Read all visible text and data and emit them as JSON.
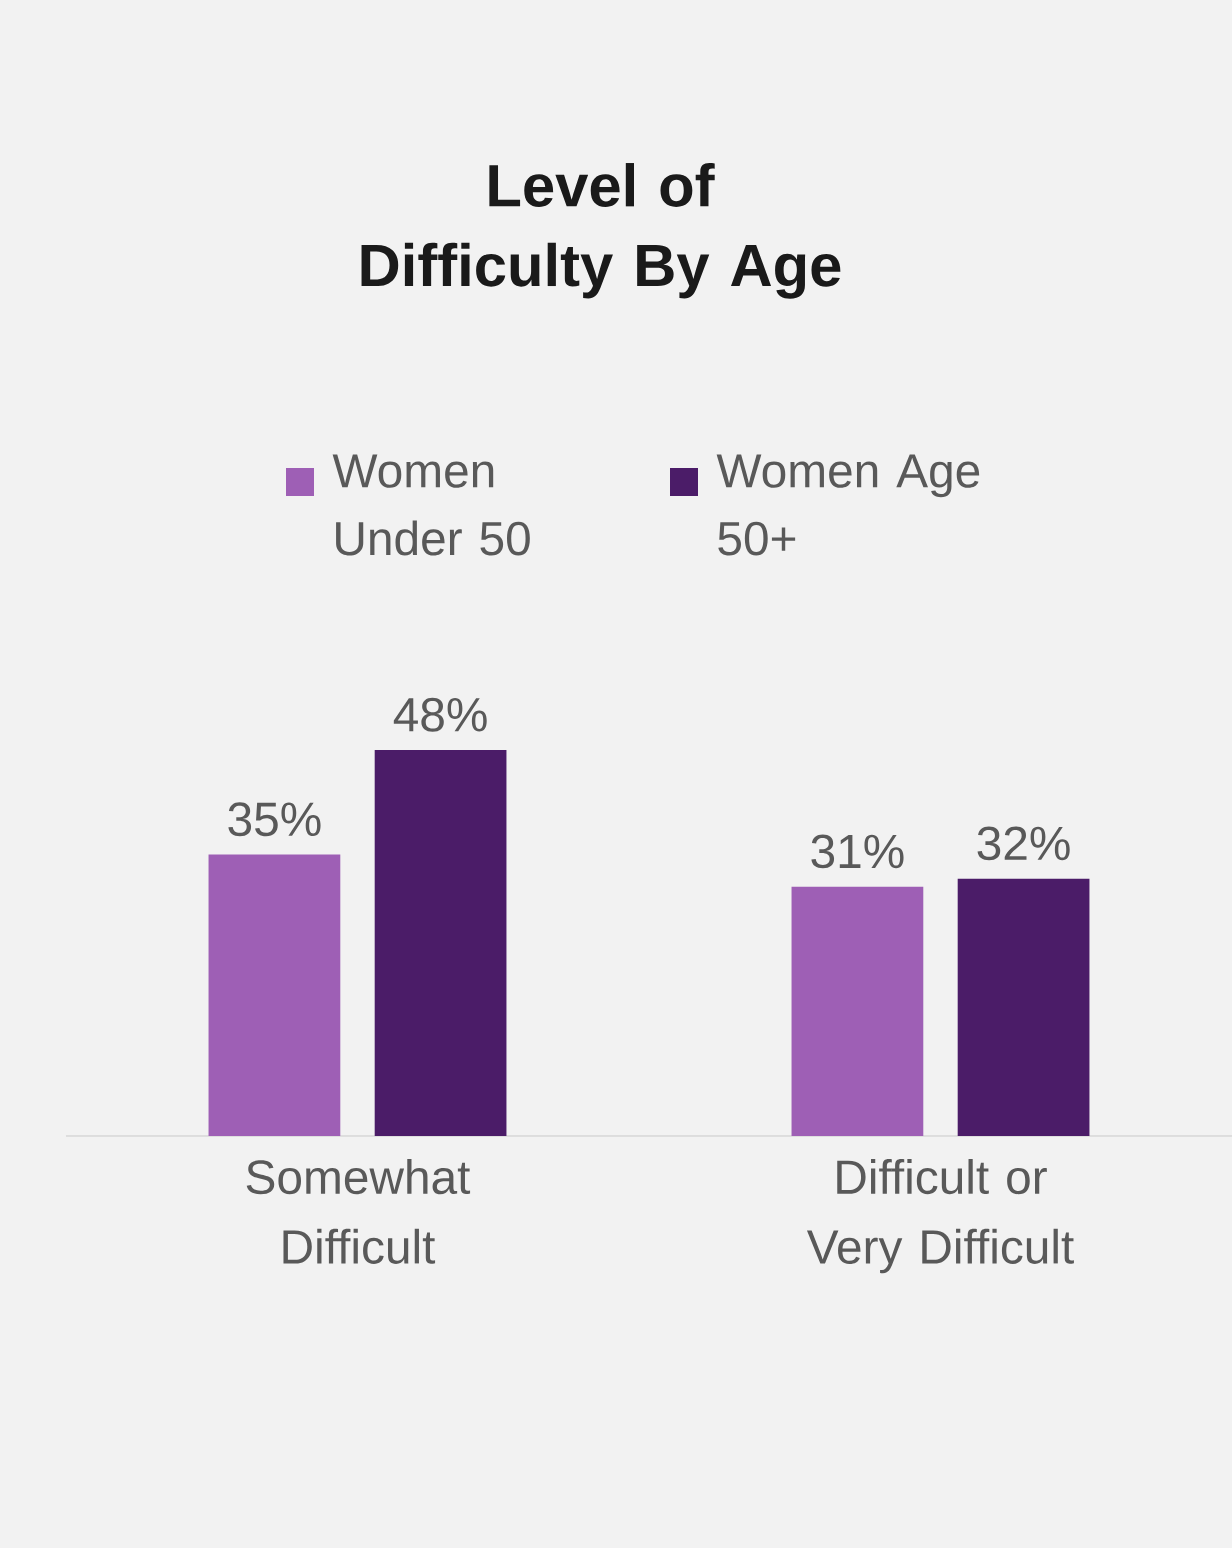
{
  "chart_data": {
    "type": "bar",
    "title": "Level of Difficulty By Age",
    "categories": [
      "Somewhat Difficult",
      "Difficult or Very Difficult"
    ],
    "series": [
      {
        "name": "Women Under 50",
        "color": "#9e5fb5",
        "values": [
          35,
          31
        ],
        "value_labels": [
          "35%",
          "31%"
        ]
      },
      {
        "name": "Women Age 50+",
        "color": "#4b1c68",
        "values": [
          48,
          32
        ],
        "value_labels": [
          "48%",
          "32%"
        ]
      }
    ],
    "legend": "top"
  }
}
